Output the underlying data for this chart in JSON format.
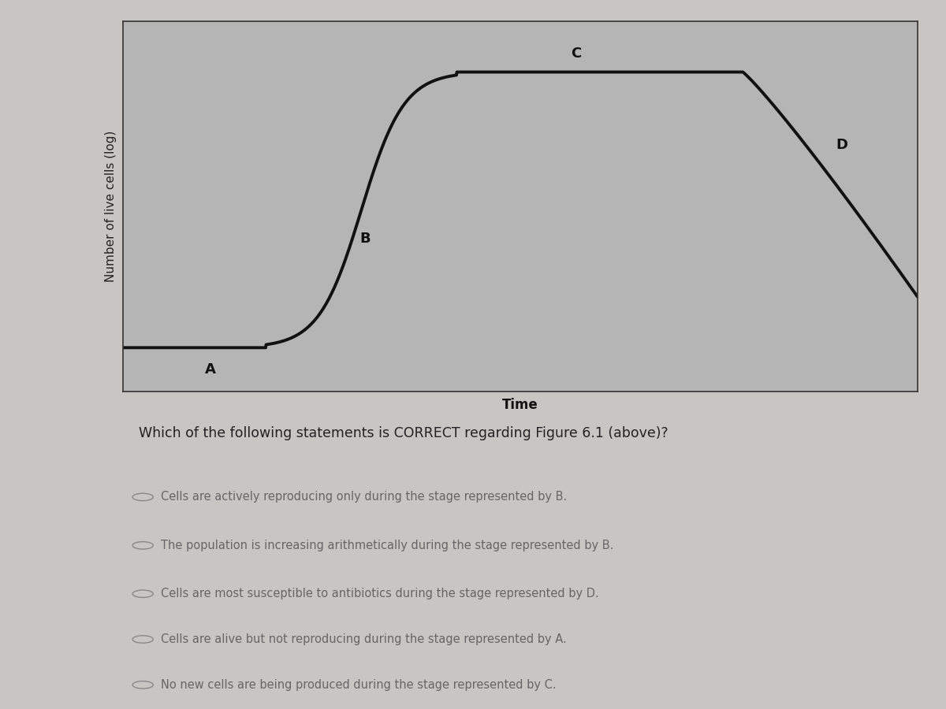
{
  "ylabel": "Number of live cells (log)",
  "xlabel": "Time",
  "plot_bg_color": "#b5b5b5",
  "outer_bg_color": "#c8c6c2",
  "curve_color": "#111111",
  "curve_linewidth": 2.8,
  "label_A": "A",
  "label_B": "B",
  "label_C": "C",
  "label_D": "D",
  "label_fontsize": 13,
  "question": "Which of the following statements is CORRECT regarding Figure 6.1 (above)?",
  "options": [
    "Cells are actively reproducing only during the stage represented by B.",
    "The population is increasing arithmetically during the stage represented by B.",
    "Cells are most susceptible to antibiotics during the stage represented by D.",
    "Cells are alive but not reproducing during the stage represented by A.",
    "No new cells are being produced during the stage represented by C."
  ],
  "option_font_size": 10.5,
  "question_font_size": 12.5,
  "text_color_dark": "#222222",
  "text_color_option": "#666666"
}
